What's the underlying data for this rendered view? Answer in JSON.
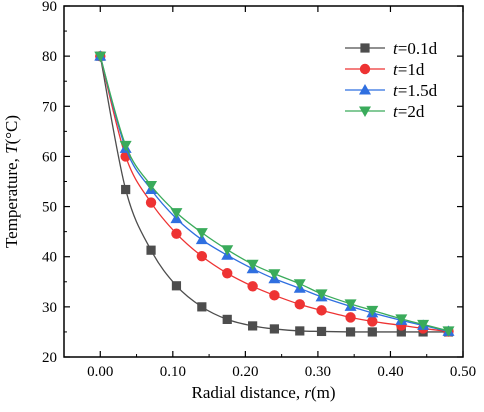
{
  "chart_data": {
    "type": "line",
    "xlabel": {
      "prefix": "Radial distance, ",
      "var": "r",
      "suffix": "(m)"
    },
    "ylabel": {
      "prefix": "Temperature, ",
      "var": "T",
      "suffix": "(°C)"
    },
    "xlim": [
      -0.05,
      0.5
    ],
    "ylim": [
      20,
      90
    ],
    "xticks": [
      0.0,
      0.1,
      0.2,
      0.3,
      0.4,
      0.5
    ],
    "xtick_labels": [
      "0.00",
      "0.10",
      "0.20",
      "0.30",
      "0.40",
      "0.50"
    ],
    "yticks": [
      20,
      30,
      40,
      50,
      60,
      70,
      80,
      90
    ],
    "ytick_labels": [
      "20",
      "30",
      "40",
      "50",
      "60",
      "70",
      "80",
      "90"
    ],
    "grid": false,
    "legend_position": "top-right",
    "x": [
      0.0,
      0.035,
      0.07,
      0.105,
      0.14,
      0.175,
      0.21,
      0.24,
      0.275,
      0.305,
      0.345,
      0.375,
      0.415,
      0.445,
      0.48
    ],
    "series": [
      {
        "name": "t=0.1d",
        "var": "t",
        "suffix": "=0.1d",
        "marker": "square",
        "color": "#4d4d4d",
        "values": [
          80.0,
          53.4,
          41.3,
          34.2,
          30.0,
          27.5,
          26.2,
          25.6,
          25.2,
          25.1,
          25.0,
          25.0,
          25.0,
          25.0,
          25.0
        ]
      },
      {
        "name": "t=1d",
        "var": "t",
        "suffix": "=1d",
        "marker": "circle",
        "color": "#ee3333",
        "values": [
          80.0,
          60.0,
          50.8,
          44.6,
          40.1,
          36.7,
          34.1,
          32.3,
          30.5,
          29.3,
          27.9,
          27.1,
          26.3,
          25.7,
          25.1
        ]
      },
      {
        "name": "t=1.5d",
        "var": "t",
        "suffix": "=1.5d",
        "marker": "triangle-up",
        "color": "#2f6fe0",
        "values": [
          80.0,
          61.6,
          53.4,
          47.6,
          43.4,
          40.3,
          37.6,
          35.6,
          33.7,
          32.0,
          30.1,
          28.8,
          27.3,
          26.3,
          25.1
        ]
      },
      {
        "name": "t=2d",
        "var": "t",
        "suffix": "=2d",
        "marker": "triangle-down",
        "color": "#3aab5b",
        "values": [
          80.0,
          62.2,
          54.2,
          48.8,
          44.8,
          41.4,
          38.5,
          36.6,
          34.6,
          32.6,
          30.6,
          29.3,
          27.6,
          26.5,
          25.2
        ]
      }
    ]
  }
}
